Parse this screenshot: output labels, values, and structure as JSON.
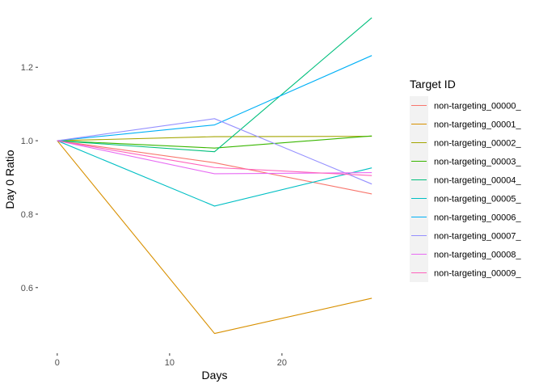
{
  "chart_data": {
    "type": "line",
    "xlabel": "Days",
    "ylabel": "Day 0 Ratio",
    "xlim": [
      -1.5,
      29.5
    ],
    "ylim": [
      0.43,
      1.37
    ],
    "x_ticks": [
      0,
      10,
      20
    ],
    "y_ticks": [
      0.6,
      0.8,
      1.0,
      1.2
    ],
    "y_tick_labels": [
      "0.6",
      "0.8",
      "1.0",
      "1.2"
    ],
    "grid": false,
    "legend_title": "Target ID",
    "legend_position": "right",
    "series": [
      {
        "name": "non-targeting_00000_",
        "color": "#F8766D",
        "x": [
          0,
          14,
          28
        ],
        "y": [
          1.0,
          0.94,
          0.855
        ]
      },
      {
        "name": "non-targeting_00001_",
        "color": "#D89000",
        "x": [
          0,
          14,
          28
        ],
        "y": [
          1.0,
          0.475,
          0.571
        ]
      },
      {
        "name": "non-targeting_00002_",
        "color": "#A3A500",
        "x": [
          0,
          14,
          28
        ],
        "y": [
          1.0,
          1.011,
          1.012
        ]
      },
      {
        "name": "non-targeting_00003_",
        "color": "#39B600",
        "x": [
          0,
          14,
          28
        ],
        "y": [
          1.0,
          0.98,
          1.013
        ]
      },
      {
        "name": "non-targeting_00004_",
        "color": "#00BF7D",
        "x": [
          0,
          14,
          28
        ],
        "y": [
          1.0,
          0.97,
          1.335
        ]
      },
      {
        "name": "non-targeting_00005_",
        "color": "#00BFC4",
        "x": [
          0,
          14,
          28
        ],
        "y": [
          1.0,
          0.822,
          0.926
        ]
      },
      {
        "name": "non-targeting_00006_",
        "color": "#00B0F6",
        "x": [
          0,
          14,
          28
        ],
        "y": [
          1.0,
          1.043,
          1.232
        ]
      },
      {
        "name": "non-targeting_00007_",
        "color": "#9590FF",
        "x": [
          0,
          14,
          28
        ],
        "y": [
          1.0,
          1.06,
          0.882
        ]
      },
      {
        "name": "non-targeting_00008_",
        "color": "#E76BF3",
        "x": [
          0,
          14,
          28
        ],
        "y": [
          1.0,
          0.91,
          0.913
        ]
      },
      {
        "name": "non-targeting_00009_",
        "color": "#FF62BC",
        "x": [
          0,
          14,
          28
        ],
        "y": [
          1.0,
          0.927,
          0.905
        ]
      }
    ]
  }
}
